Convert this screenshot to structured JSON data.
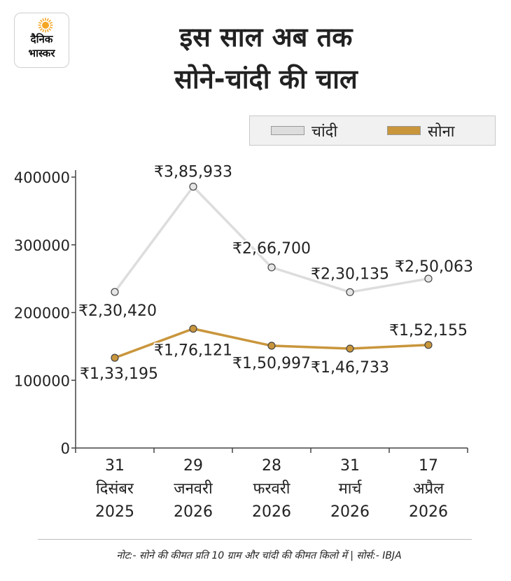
{
  "logo": {
    "line1": "दैनिक",
    "line2": "भास्कर",
    "accent_color": "#f5a623"
  },
  "title": {
    "line1": "इस साल अब तक",
    "line2": "सोने-चांदी की चाल"
  },
  "legend": {
    "silver_label": "चांदी",
    "gold_label": "सोना"
  },
  "colors": {
    "silver_line": "#dddddd",
    "silver_marker": "#e6e6e6",
    "gold_line": "#c9963c",
    "gold_marker": "#c9963c",
    "marker_stroke": "#444444",
    "axis": "#444444"
  },
  "chart_data": {
    "type": "line",
    "categories": [
      [
        "31",
        "दिसंबर",
        "2025"
      ],
      [
        "29",
        "जनवरी",
        "2026"
      ],
      [
        "28",
        "फरवरी",
        "2026"
      ],
      [
        "31",
        "मार्च",
        "2026"
      ],
      [
        "17",
        "अप्रैल",
        "2026"
      ]
    ],
    "yticks": [
      "0",
      "100000",
      "200000",
      "300000",
      "400000"
    ],
    "ylim": [
      0,
      400000
    ],
    "grid": false,
    "legend_position": "top-right",
    "series": [
      {
        "name": "चांदी",
        "key": "silver",
        "values": [
          230420,
          385933,
          266700,
          230135,
          250063
        ],
        "labels": [
          "₹2,30,420",
          "₹3,85,933",
          "₹2,66,700",
          "₹2,30,135",
          "₹2,50,063"
        ]
      },
      {
        "name": "सोना",
        "key": "gold",
        "values": [
          133195,
          176121,
          150997,
          146733,
          152155
        ],
        "labels": [
          "₹1,33,195",
          "₹1,76,121",
          "₹1,50,997",
          "₹1,46,733",
          "₹1,52,155"
        ]
      }
    ]
  },
  "note": "नोट:- सोने की कीमत प्रति 10 ग्राम और चांदी की कीमत किलो में | सोर्स:- IBJA"
}
